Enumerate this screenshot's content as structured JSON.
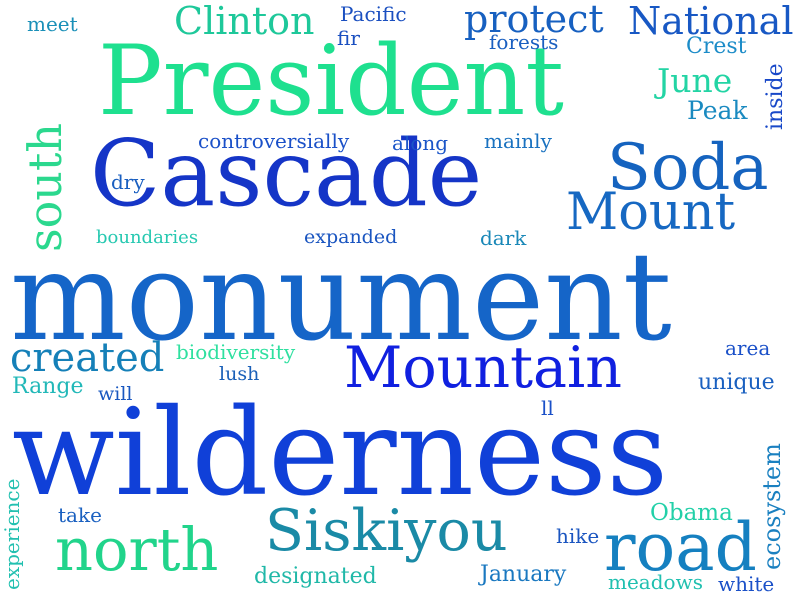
{
  "words": [
    {
      "text": "monument",
      "color": "#1565c8"
    },
    {
      "text": "wilderness",
      "color": "#1040d8"
    },
    {
      "text": "President",
      "color": "#1ee08f"
    },
    {
      "text": "Cascade",
      "color": "#1535c7"
    },
    {
      "text": "Mountain",
      "color": "#1020e0"
    },
    {
      "text": "Siskiyou",
      "color": "#1a8aa6"
    },
    {
      "text": "north",
      "color": "#21d48b"
    },
    {
      "text": "road",
      "color": "#1580c0"
    },
    {
      "text": "Soda",
      "color": "#1563bf"
    },
    {
      "text": "Mount",
      "color": "#1668c2"
    },
    {
      "text": "south",
      "color": "#2bd88e"
    },
    {
      "text": "created",
      "color": "#1580b8"
    },
    {
      "text": "protect",
      "color": "#1760c0"
    },
    {
      "text": "National",
      "color": "#1858c4"
    },
    {
      "text": "Clinton",
      "color": "#1ec89a"
    },
    {
      "text": "June",
      "color": "#23d4a4"
    },
    {
      "text": "Peak",
      "color": "#1a8ac0"
    },
    {
      "text": "Crest",
      "color": "#1c8cc8"
    },
    {
      "text": "inside",
      "color": "#1848c8"
    },
    {
      "text": "Pacific",
      "color": "#1a4fc0"
    },
    {
      "text": "fir",
      "color": "#1a4fc0"
    },
    {
      "text": "forests",
      "color": "#1a5fc0"
    },
    {
      "text": "meet",
      "color": "#1a90b8"
    },
    {
      "text": "controversially",
      "color": "#1a50c8"
    },
    {
      "text": "along",
      "color": "#1a55c8"
    },
    {
      "text": "mainly",
      "color": "#1a72c0"
    },
    {
      "text": "dry",
      "color": "#1a5fc0"
    },
    {
      "text": "boundaries",
      "color": "#25c8b0"
    },
    {
      "text": "expanded",
      "color": "#1a55c0"
    },
    {
      "text": "dark",
      "color": "#1a88b8"
    },
    {
      "text": "biodiversity",
      "color": "#30e0a0"
    },
    {
      "text": "lush",
      "color": "#1a60b8"
    },
    {
      "text": "Range",
      "color": "#22b8b8"
    },
    {
      "text": "will",
      "color": "#1a58c0"
    },
    {
      "text": "area",
      "color": "#1a50c8"
    },
    {
      "text": "unique",
      "color": "#1a60c0"
    },
    {
      "text": "ll",
      "color": "#1a50c8"
    },
    {
      "text": "ecosystem",
      "color": "#1a80c0"
    },
    {
      "text": "experience",
      "color": "#22c0b0"
    },
    {
      "text": "take",
      "color": "#1a60c0"
    },
    {
      "text": "Obama",
      "color": "#22d0a8"
    },
    {
      "text": "hike",
      "color": "#1a55c0"
    },
    {
      "text": "designated",
      "color": "#20b8a8"
    },
    {
      "text": "January",
      "color": "#1a78c0"
    },
    {
      "text": "meadows",
      "color": "#20c0b0"
    },
    {
      "text": "white",
      "color": "#1a50c8"
    }
  ]
}
